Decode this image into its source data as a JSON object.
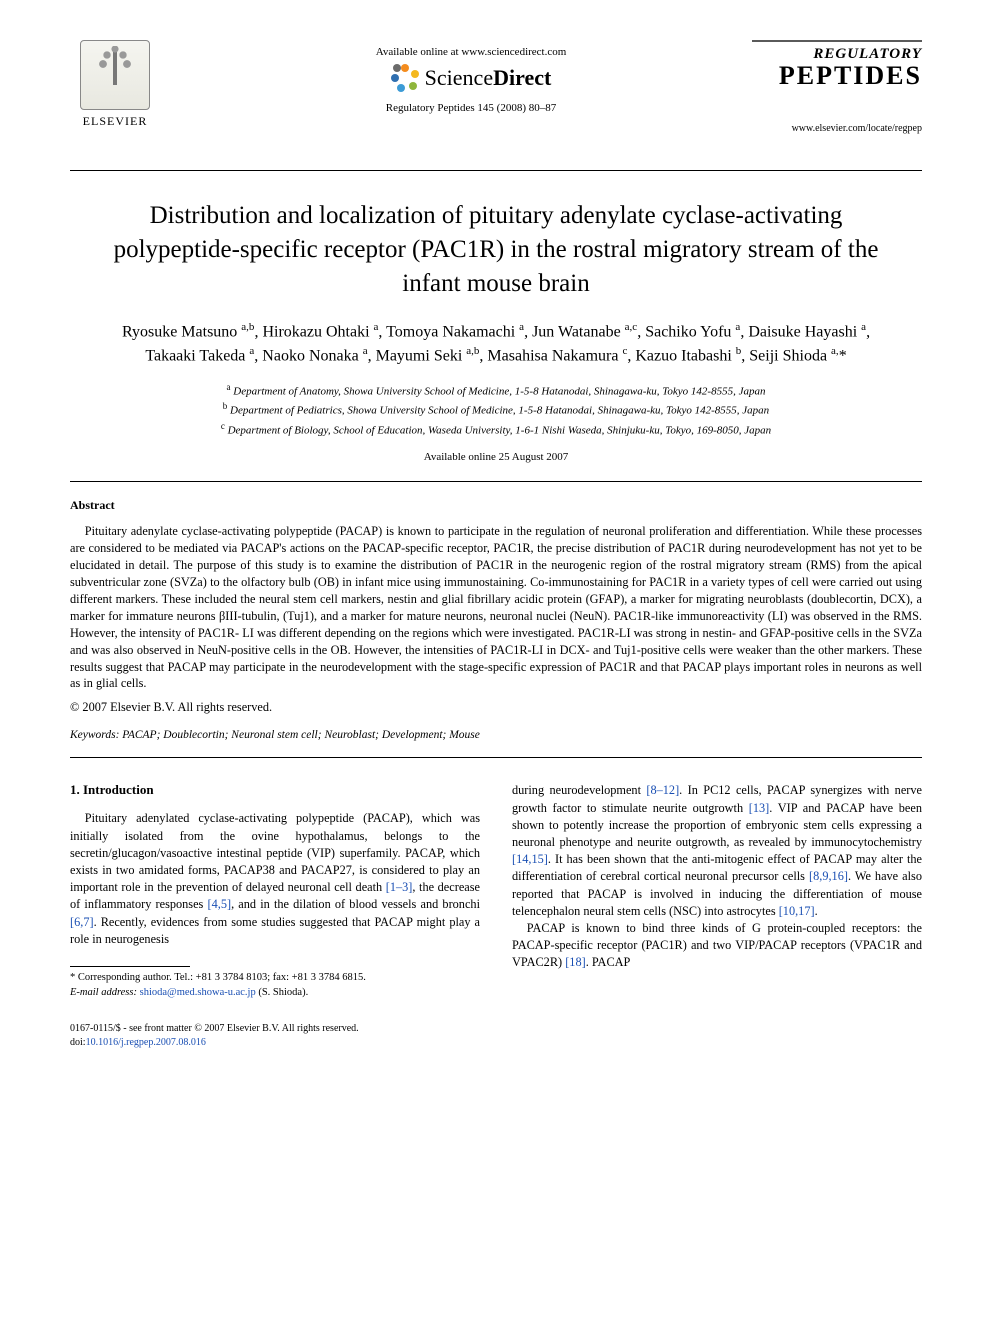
{
  "header": {
    "publisher_name": "ELSEVIER",
    "available_line": "Available online at www.sciencedirect.com",
    "sd_brand_plain": "Science",
    "sd_brand_bold": "Direct",
    "citation": "Regulatory Peptides 145 (2008) 80–87",
    "journal_line1": "REGULATORY",
    "journal_line2": "PEPTIDES",
    "journal_url": "www.elsevier.com/locate/regpep",
    "sd_petal_colors": [
      "#f48c1e",
      "#f4b81e",
      "#8fb63c",
      "#3c9bd6",
      "#2f6fb0",
      "#6b6b6b"
    ]
  },
  "paper": {
    "title": "Distribution and localization of pituitary adenylate cyclase-activating polypeptide-specific receptor (PAC1R) in the rostral migratory stream of the infant mouse brain",
    "authors_html": "Ryosuke Matsuno <sup>a,b</sup>, Hirokazu Ohtaki <sup>a</sup>, Tomoya Nakamachi <sup>a</sup>, Jun Watanabe <sup>a,c</sup>, Sachiko Yofu <sup>a</sup>, Daisuke Hayashi <sup>a</sup>, Takaaki Takeda <sup>a</sup>, Naoko Nonaka <sup>a</sup>, Mayumi Seki <sup>a,b</sup>, Masahisa Nakamura <sup>c</sup>, Kazuo Itabashi <sup>b</sup>, Seiji Shioda <sup>a,</sup>*",
    "affiliations": {
      "a": "Department of Anatomy, Showa University School of Medicine, 1-5-8 Hatanodai, Shinagawa-ku, Tokyo 142-8555, Japan",
      "b": "Department of Pediatrics, Showa University School of Medicine, 1-5-8 Hatanodai, Shinagawa-ku, Tokyo 142-8555, Japan",
      "c": "Department of Biology, School of Education, Waseda University, 1-6-1 Nishi Waseda, Shinjuku-ku, Tokyo, 169-8050, Japan"
    },
    "available_online": "Available online 25 August 2007"
  },
  "abstract": {
    "label": "Abstract",
    "body": "Pituitary adenylate cyclase-activating polypeptide (PACAP) is known to participate in the regulation of neuronal proliferation and differentiation. While these processes are considered to be mediated via PACAP's actions on the PACAP-specific receptor, PAC1R, the precise distribution of PAC1R during neurodevelopment has not yet to be elucidated in detail. The purpose of this study is to examine the distribution of PAC1R in the neurogenic region of the rostral migratory stream (RMS) from the apical subventricular zone (SVZa) to the olfactory bulb (OB) in infant mice using immunostaining. Co-immunostaining for PAC1R in a variety types of cell were carried out using different markers. These included the neural stem cell markers, nestin and glial fibrillary acidic protein (GFAP), a marker for migrating neuroblasts (doublecortin, DCX), a marker for immature neurons βIII-tubulin, (Tuj1), and a marker for mature neurons, neuronal nuclei (NeuN). PAC1R-like immunoreactivity (LI) was observed in the RMS. However, the intensity of PAC1R- LI was different depending on the regions which were investigated. PAC1R-LI was strong in nestin- and GFAP-positive cells in the SVZa and was also observed in NeuN-positive cells in the OB. However, the intensities of PAC1R-LI in DCX- and Tuj1-positive cells were weaker than the other markers. These results suggest that PACAP may participate in the neurodevelopment with the stage-specific expression of PAC1R and that PACAP plays important roles in neurons as well as in glial cells.",
    "copyright": "© 2007 Elsevier B.V. All rights reserved."
  },
  "keywords": {
    "label": "Keywords:",
    "list": "PACAP; Doublecortin; Neuronal stem cell; Neuroblast; Development; Mouse"
  },
  "intro": {
    "heading": "1. Introduction",
    "col1_p1_pre": "Pituitary adenylated cyclase-activating polypeptide (PACAP), which was initially isolated from the ovine hypothalamus, belongs to the secretin/glucagon/vasoactive intestinal peptide (VIP) superfamily. PACAP, which exists in two amidated forms, PACAP38 and PACAP27, is considered to play an important role in the prevention of delayed neuronal cell death ",
    "ref1": "[1–3]",
    "col1_p1_mid1": ", the decrease of inflammatory responses ",
    "ref2": "[4,5]",
    "col1_p1_mid2": ", and in the dilation of blood vessels and bronchi ",
    "ref3": "[6,7]",
    "col1_p1_tail": ". Recently, evidences from some studies suggested that PACAP might play a role in neurogenesis",
    "col2_p1_pre": "during neurodevelopment ",
    "ref4": "[8–12]",
    "col2_p1_a": ". In PC12 cells, PACAP synergizes with nerve growth factor to stimulate neurite outgrowth ",
    "ref5": "[13]",
    "col2_p1_b": ". VIP and PACAP have been shown to potently increase the proportion of embryonic stem cells expressing a neuronal phenotype and neurite outgrowth, as revealed by immunocytochemistry ",
    "ref6": "[14,15]",
    "col2_p1_c": ". It has been shown that the anti-mitogenic effect of PACAP may alter the differentiation of cerebral cortical neuronal precursor cells ",
    "ref7": "[8,9,16]",
    "col2_p1_d": ". We have also reported that PACAP is involved in inducing the differentiation of mouse telencephalon neural stem cells (NSC) into astrocytes ",
    "ref8": "[10,17]",
    "col2_p1_e": ".",
    "col2_p2_pre": "PACAP is known to bind three kinds of G protein-coupled receptors: the PACAP-specific receptor (PAC1R) and two VIP/PACAP receptors (VPAC1R and VPAC2R) ",
    "ref9": "[18]",
    "col2_p2_tail": ". PACAP"
  },
  "footnote": {
    "corr_label": "* Corresponding author. Tel.: +81 3 3784 8103; fax: +81 3 3784 6815.",
    "email_label": "E-mail address:",
    "email": "shioda@med.showa-u.ac.jp",
    "email_paren": "(S. Shioda)."
  },
  "footer": {
    "line1": "0167-0115/$ - see front matter © 2007 Elsevier B.V. All rights reserved.",
    "doi_label": "doi:",
    "doi": "10.1016/j.regpep.2007.08.016"
  },
  "colors": {
    "link": "#1a4fb3",
    "rule": "#000000",
    "text": "#000000",
    "background": "#ffffff"
  },
  "typography": {
    "title_fontsize_pt": 19,
    "authors_fontsize_pt": 12,
    "body_fontsize_pt": 9.5,
    "font_family": "Times New Roman"
  }
}
